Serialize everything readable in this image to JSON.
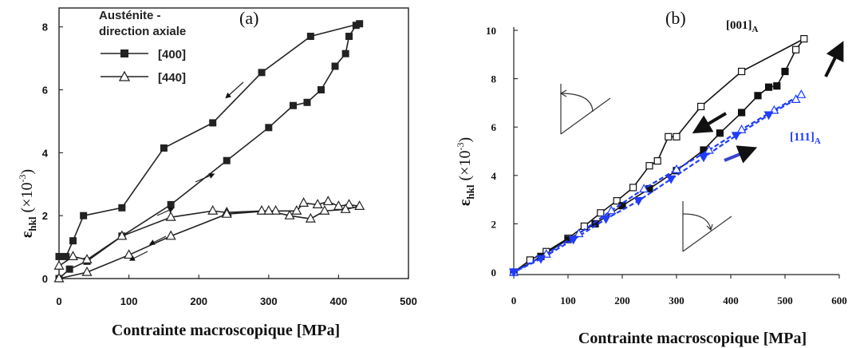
{
  "chart_data": [
    {
      "type": "line",
      "panel_label": "(a)",
      "xlabel": "Contrainte macroscopique [MPa]",
      "ylabel_main": "ε",
      "ylabel_sub": "hkl",
      "ylabel_unit": "(×10",
      "ylabel_exp": "-3",
      "ylabel_close": ")",
      "xlim": [
        0,
        500
      ],
      "ylim": [
        0,
        8.5
      ],
      "x_ticks": [
        "0",
        "100",
        "200",
        "300",
        "400",
        "500"
      ],
      "y_ticks": [
        "0",
        "2",
        "4",
        "6",
        "8"
      ],
      "legend_title_1": "Austénite -",
      "legend_title_2": "direction axiale",
      "series": [
        {
          "name": "[400]",
          "marker": "filled-square",
          "color": "#222222",
          "points": [
            [
              0,
              0.7
            ],
            [
              10,
              0.7
            ],
            [
              20,
              1.2
            ],
            [
              35,
              2.0
            ],
            [
              90,
              2.25
            ],
            [
              150,
              4.15
            ],
            [
              220,
              4.95
            ],
            [
              290,
              6.55
            ],
            [
              360,
              7.7
            ],
            [
              430,
              8.1
            ],
            [
              425,
              8.05
            ],
            [
              415,
              7.7
            ],
            [
              410,
              7.15
            ],
            [
              395,
              6.75
            ],
            [
              375,
              6.0
            ],
            [
              355,
              5.6
            ],
            [
              335,
              5.5
            ],
            [
              300,
              4.8
            ],
            [
              240,
              3.75
            ],
            [
              160,
              2.35
            ],
            [
              90,
              1.35
            ],
            [
              40,
              0.55
            ],
            [
              15,
              0.3
            ],
            [
              0,
              0.0
            ]
          ]
        },
        {
          "name": "[440]",
          "marker": "open-triangle",
          "color": "#222222",
          "points": [
            [
              0,
              0.4
            ],
            [
              20,
              0.7
            ],
            [
              40,
              0.6
            ],
            [
              90,
              1.35
            ],
            [
              160,
              1.95
            ],
            [
              220,
              2.15
            ],
            [
              240,
              2.1
            ],
            [
              290,
              2.15
            ],
            [
              310,
              2.15
            ],
            [
              340,
              2.15
            ],
            [
              350,
              2.4
            ],
            [
              370,
              2.35
            ],
            [
              385,
              2.45
            ],
            [
              400,
              2.3
            ],
            [
              415,
              2.35
            ],
            [
              430,
              2.3
            ],
            [
              410,
              2.2
            ],
            [
              380,
              2.15
            ],
            [
              360,
              1.9
            ],
            [
              330,
              2.0
            ],
            [
              300,
              2.15
            ],
            [
              240,
              2.05
            ],
            [
              160,
              1.35
            ],
            [
              100,
              0.75
            ],
            [
              40,
              0.2
            ],
            [
              0,
              0.0
            ]
          ]
        }
      ]
    },
    {
      "type": "line",
      "panel_label": "(b)",
      "xlabel": "Contrainte macroscopique [MPa]",
      "ylabel_main": "ε",
      "ylabel_sub": "hkl",
      "ylabel_unit": "(×10",
      "ylabel_exp": "-3",
      "ylabel_close": ")",
      "xlim": [
        0,
        600
      ],
      "ylim": [
        0,
        10
      ],
      "x_ticks": [
        "0",
        "100",
        "200",
        "300",
        "400",
        "500",
        "600"
      ],
      "y_ticks": [
        "0",
        "2",
        "4",
        "6",
        "8",
        "10"
      ],
      "series": [
        {
          "name": "[001]",
          "name_sub": "A",
          "marker": "square",
          "color": "#111111",
          "points": [
            [
              0,
              0.0
            ],
            [
              30,
              0.5
            ],
            [
              60,
              0.85
            ],
            [
              100,
              1.4
            ],
            [
              130,
              1.9
            ],
            [
              160,
              2.45
            ],
            [
              190,
              2.95
            ],
            [
              220,
              3.5
            ],
            [
              250,
              4.4
            ],
            [
              265,
              4.6
            ],
            [
              285,
              5.6
            ],
            [
              300,
              5.6
            ],
            [
              345,
              6.85
            ],
            [
              420,
              8.3
            ],
            [
              535,
              9.65
            ],
            [
              520,
              9.2
            ],
            [
              500,
              8.3
            ],
            [
              485,
              7.7
            ],
            [
              470,
              7.65
            ],
            [
              450,
              7.3
            ],
            [
              420,
              6.6
            ],
            [
              380,
              5.75
            ],
            [
              350,
              5.05
            ],
            [
              300,
              4.2
            ],
            [
              250,
              3.45
            ],
            [
              200,
              2.75
            ],
            [
              150,
              2.0
            ],
            [
              100,
              1.35
            ],
            [
              50,
              0.65
            ],
            [
              0,
              0.0
            ]
          ]
        },
        {
          "name": "[111]",
          "name_sub": "A",
          "marker": "triangle",
          "color": "#1f3cff",
          "points": [
            [
              0,
              0.0
            ],
            [
              60,
              0.75
            ],
            [
              120,
              1.6
            ],
            [
              180,
              2.55
            ],
            [
              240,
              3.45
            ],
            [
              300,
              4.25
            ],
            [
              360,
              5.05
            ],
            [
              420,
              5.9
            ],
            [
              480,
              6.7
            ],
            [
              530,
              7.35
            ],
            [
              520,
              7.15
            ],
            [
              470,
              6.5
            ],
            [
              410,
              5.65
            ],
            [
              350,
              4.75
            ],
            [
              290,
              3.85
            ],
            [
              230,
              2.95
            ],
            [
              170,
              2.2
            ],
            [
              110,
              1.35
            ],
            [
              50,
              0.55
            ],
            [
              0,
              0.0
            ]
          ]
        }
      ]
    }
  ]
}
